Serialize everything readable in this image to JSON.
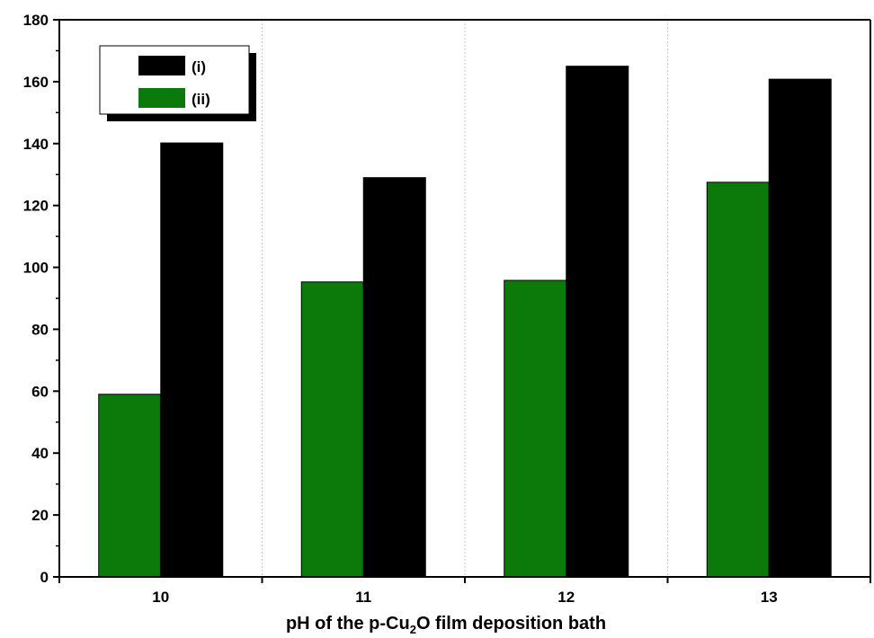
{
  "chart_data": {
    "type": "bar",
    "title": "",
    "xlabel": {
      "prefix": "pH of the p-Cu",
      "subscript": "2",
      "suffix": "O film deposition bath"
    },
    "ylabel": "",
    "categories": [
      "10",
      "11",
      "12",
      "13"
    ],
    "series": [
      {
        "name": "(ii)",
        "color": "#0b7a0b",
        "values": [
          59,
          95.3,
          95.8,
          127.5
        ]
      },
      {
        "name": "(i)",
        "color": "#000000",
        "values": [
          140.2,
          129,
          165,
          160.8
        ]
      }
    ],
    "ylim": [
      0,
      180
    ],
    "yticks": [
      0,
      20,
      40,
      60,
      80,
      100,
      120,
      140,
      160,
      180
    ],
    "grid": "vertical dotted between categories",
    "legend": {
      "placement": "top-left",
      "entries": [
        {
          "label": "(i)",
          "color": "#000000"
        },
        {
          "label": "(ii)",
          "color": "#0b7a0b"
        }
      ]
    }
  }
}
